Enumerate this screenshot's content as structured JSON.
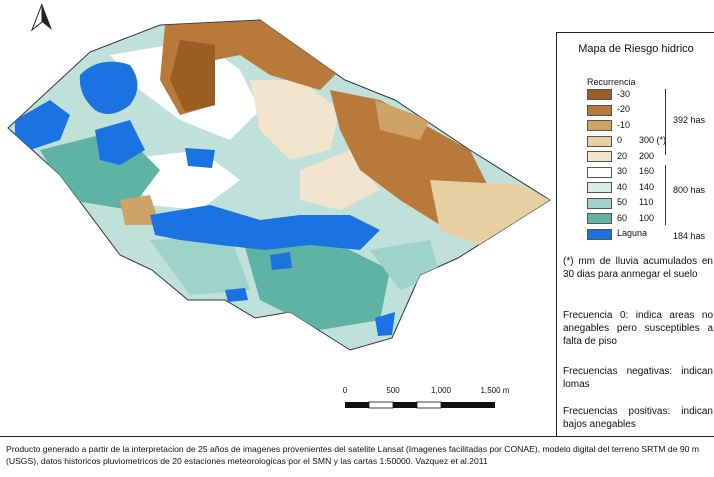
{
  "legend": {
    "title": "Mapa de Riesgo hidrico",
    "subtitle": "Recurrencia",
    "items": [
      {
        "label": "-30",
        "mm": "",
        "color": "#9a5d22"
      },
      {
        "label": "-20",
        "mm": "",
        "color": "#b8793a"
      },
      {
        "label": "-10",
        "mm": "",
        "color": "#cfa265"
      },
      {
        "label": "0",
        "mm": "300 (*)",
        "color": "#e7cfa2"
      },
      {
        "label": "20",
        "mm": "200",
        "color": "#f3e4cd"
      },
      {
        "label": "30",
        "mm": "160",
        "color": "#ffffff"
      },
      {
        "label": "40",
        "mm": "140",
        "color": "#d6ece6"
      },
      {
        "label": "50",
        "mm": "110",
        "color": "#9fd2c8"
      },
      {
        "label": "60",
        "mm": "100",
        "color": "#5fb3a5"
      },
      {
        "label": "Laguna",
        "mm": "",
        "color": "#1a73e0"
      }
    ],
    "groups": [
      {
        "label": "392 has"
      },
      {
        "label": "800 has"
      },
      {
        "label": "184 has"
      }
    ]
  },
  "notes": {
    "mm_note": "(*) mm de lluvia acumulados en 30 dias para anmegar el suelo",
    "freq_zero": "Frecuencia 0: indica areas no anegables pero susceptibles a falta de piso",
    "freq_neg": "Frecuencias negativas: indican lomas",
    "freq_pos": "Frecuencias positivas: indican bajos anegables"
  },
  "scale": {
    "ticks": [
      "0",
      "500",
      "1,000",
      "1,500 m"
    ]
  },
  "footer": "Producto generado a partir de la interpretacion de 25 años de imagenes provenientes del satelite Lansat (Imagenes facilitadas por CONAE), modelo digital del terreno SRTM de 90 m (USGS), datos historicos pluviometricos de 20 estaciones meteorologicas por el SMN y las cartas 1:50000. Vazquez et al.2011"
}
